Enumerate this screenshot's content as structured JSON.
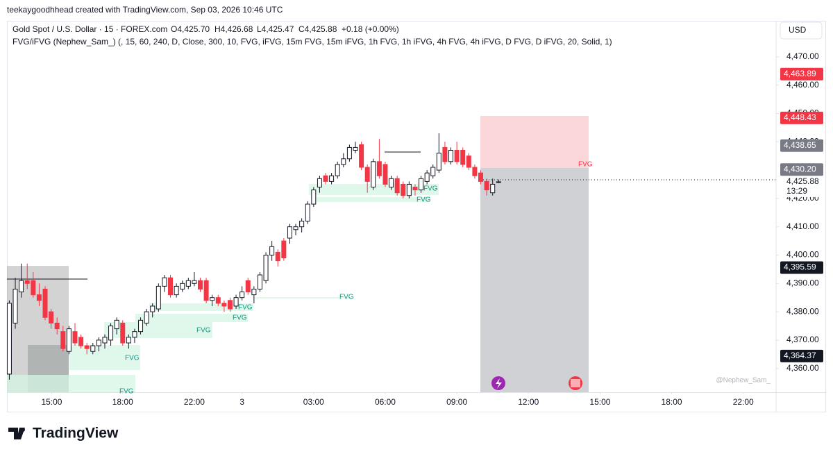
{
  "header": {
    "credit": "teekaygoodhhead created with TradingView.com, Sep 03, 2026 10:46 UTC"
  },
  "chart_data": {
    "type": "candlestick",
    "title": "Gold Spot / U.S. Dollar · 15 · FOREX.com",
    "ohlc_text": [
      "O4,425.70",
      "H4,426.68",
      "L4,425.47",
      "C4,425.88",
      "+0.18 (+0.00%)"
    ],
    "indicator": "FVG/iFVG (Nephew_Sam_) (, 15, 60, 240, D, Close, 300, 10, FVG, iFVG, 15m FVG, 15m iFVG, 1h FVG, 1h iFVG, 4h FVG, 4h iFVG, D FVG, D iFVG, 20, Solid, 1)",
    "currency": "USD",
    "up_color": "#ffffff",
    "down_color": "#f23645",
    "border_color": "#131722",
    "ohlc": [
      [
        4358,
        4384,
        4356,
        4383
      ],
      [
        4376,
        4392,
        4374,
        4388
      ],
      [
        4387,
        4397,
        4385,
        4391
      ],
      [
        4391,
        4397,
        4388,
        4390
      ],
      [
        4391,
        4394,
        4385,
        4386
      ],
      [
        4386,
        4390,
        4382,
        4384
      ],
      [
        4388,
        4389,
        4377,
        4378
      ],
      [
        4380,
        4381,
        4374,
        4376
      ],
      [
        4376,
        4378,
        4372,
        4374
      ],
      [
        4373,
        4375,
        4366,
        4367
      ],
      [
        4366,
        4375,
        4365,
        4374
      ],
      [
        4373,
        4376,
        4368,
        4369
      ],
      [
        4371,
        4372,
        4367,
        4368
      ],
      [
        4368,
        4369,
        4365,
        4367
      ],
      [
        4366,
        4369,
        4365,
        4368
      ],
      [
        4368,
        4371,
        4366,
        4370
      ],
      [
        4369,
        4372,
        4367,
        4371
      ],
      [
        4370,
        4376,
        4368,
        4375
      ],
      [
        4374,
        4378,
        4372,
        4377
      ],
      [
        4376,
        4377,
        4368,
        4369
      ],
      [
        4369,
        4372,
        4367,
        4371
      ],
      [
        4371,
        4374,
        4369,
        4373
      ],
      [
        4373,
        4378,
        4372,
        4377
      ],
      [
        4376,
        4381,
        4375,
        4380
      ],
      [
        4380,
        4383,
        4378,
        4382
      ],
      [
        4381,
        4390,
        4380,
        4389
      ],
      [
        4389,
        4393,
        4387,
        4392
      ],
      [
        4392,
        4393,
        4385,
        4386
      ],
      [
        4386,
        4390,
        4385,
        4389
      ],
      [
        4388,
        4391,
        4387,
        4390
      ],
      [
        4389,
        4392,
        4388,
        4391
      ],
      [
        4390,
        4394,
        4389,
        4391
      ],
      [
        4391,
        4392,
        4387,
        4388
      ],
      [
        4391,
        4392,
        4383,
        4384
      ],
      [
        4384,
        4386,
        4382,
        4385
      ],
      [
        4385,
        4386,
        4382,
        4383
      ],
      [
        4383,
        4384,
        4380,
        4382
      ],
      [
        4384,
        4385,
        4380,
        4381
      ],
      [
        4382,
        4386,
        4381,
        4385
      ],
      [
        4385,
        4389,
        4384,
        4387
      ],
      [
        4391,
        4392,
        4386,
        4387
      ],
      [
        4386,
        4389,
        4383,
        4388
      ],
      [
        4388,
        4394,
        4387,
        4393
      ],
      [
        4391,
        4401,
        4390,
        4400
      ],
      [
        4400,
        4405,
        4398,
        4403
      ],
      [
        4401,
        4402,
        4396,
        4398
      ],
      [
        4405,
        4406,
        4398,
        4399
      ],
      [
        4406,
        4411,
        4404,
        4410
      ],
      [
        4409,
        4411,
        4407,
        4410
      ],
      [
        4410,
        4413,
        4408,
        4412
      ],
      [
        4412,
        4419,
        4411,
        4418
      ],
      [
        4418,
        4424,
        4417,
        4423
      ],
      [
        4424,
        4428,
        4422,
        4427
      ],
      [
        4428,
        4429,
        4425,
        4426
      ],
      [
        4426,
        4429,
        4425,
        4428
      ],
      [
        4428,
        4433,
        4427,
        4432
      ],
      [
        4432,
        4436,
        4431,
        4434
      ],
      [
        4434,
        4439,
        4433,
        4438
      ],
      [
        4437,
        4440,
        4436,
        4438
      ],
      [
        4439,
        4440,
        4430,
        4431
      ],
      [
        4431,
        4432,
        4422,
        4426
      ],
      [
        4424,
        4434,
        4423,
        4433
      ],
      [
        4433,
        4441,
        4427,
        4428
      ],
      [
        4432,
        4433,
        4424,
        4425
      ],
      [
        4424,
        4428,
        4423,
        4427
      ],
      [
        4427,
        4428,
        4421,
        4422
      ],
      [
        4425,
        4426,
        4420,
        4421
      ],
      [
        4421,
        4426,
        4420,
        4425
      ],
      [
        4424,
        4425,
        4421,
        4423
      ],
      [
        4423,
        4428,
        4422,
        4427
      ],
      [
        4426,
        4430,
        4425,
        4429
      ],
      [
        4428,
        4432,
        4427,
        4431
      ],
      [
        4430,
        4443,
        4429,
        4436
      ],
      [
        4438,
        4440,
        4432,
        4433
      ],
      [
        4433,
        4438,
        4432,
        4437
      ],
      [
        4437,
        4440,
        4432,
        4433
      ],
      [
        4437,
        4438,
        4431,
        4432
      ],
      [
        4435,
        4436,
        4430,
        4431
      ],
      [
        4431,
        4432,
        4427,
        4428
      ],
      [
        4429,
        4430,
        4425,
        4426
      ],
      [
        4426,
        4427,
        4421,
        4423
      ],
      [
        4422,
        4427,
        4421,
        4425
      ],
      [
        4425.7,
        4426.68,
        4425.47,
        4425.88
      ]
    ],
    "xlim": [
      -0.4,
      128.5
    ],
    "xticks": [
      {
        "value": 7.1,
        "label": "15:00"
      },
      {
        "value": 19,
        "label": "18:00"
      },
      {
        "value": 31,
        "label": "22:00"
      },
      {
        "value": 39,
        "label": "3"
      },
      {
        "value": 51,
        "label": "03:00"
      },
      {
        "value": 63,
        "label": "06:00"
      },
      {
        "value": 75,
        "label": "09:00"
      },
      {
        "value": 87,
        "label": "12:00"
      },
      {
        "value": 99,
        "label": "15:00"
      },
      {
        "value": 111,
        "label": "18:00"
      },
      {
        "value": 123,
        "label": "22:00"
      }
    ],
    "ylim": [
      4351.6,
      4482.7
    ],
    "yticks": [
      {
        "value": 4360,
        "label": "4,360.00"
      },
      {
        "value": 4370,
        "label": "4,370.00"
      },
      {
        "value": 4380,
        "label": "4,380.00"
      },
      {
        "value": 4390,
        "label": "4,390.00"
      },
      {
        "value": 4400,
        "label": "4,400.00"
      },
      {
        "value": 4410,
        "label": "4,410.00"
      },
      {
        "value": 4420,
        "label": "4,420.00"
      },
      {
        "value": 4440,
        "label": "4,440.00"
      },
      {
        "value": 4450,
        "label": "4,450.00"
      },
      {
        "value": 4460,
        "label": "4,460.00"
      },
      {
        "value": 4470,
        "label": "4,470.00"
      }
    ],
    "price_tags": [
      {
        "value": 4463.89,
        "label": "4,463.89",
        "color": "#f23645"
      },
      {
        "value": 4448.43,
        "label": "4,448.43",
        "color": "#f23645"
      },
      {
        "value": 4438.65,
        "label": "4,438.65",
        "color": "#787b86"
      },
      {
        "value": 4430.2,
        "label": "4,430.20",
        "color": "#787b86"
      },
      {
        "value": 4395.59,
        "label": "4,395.59",
        "color": "#131722"
      },
      {
        "value": 4364.37,
        "label": "4,364.37",
        "color": "#131722"
      }
    ],
    "last_price": {
      "value": 4425.88,
      "label": "4,425.88",
      "countdown": "13:29"
    },
    "annotations": [
      "FVG",
      "FVG",
      "FVG",
      "FVG",
      "FVG",
      "FVG",
      "FVG",
      "FVG",
      "FVG"
    ],
    "watermark": "@Nephew_Sam_"
  },
  "footer": {
    "brand": "TradingView"
  }
}
